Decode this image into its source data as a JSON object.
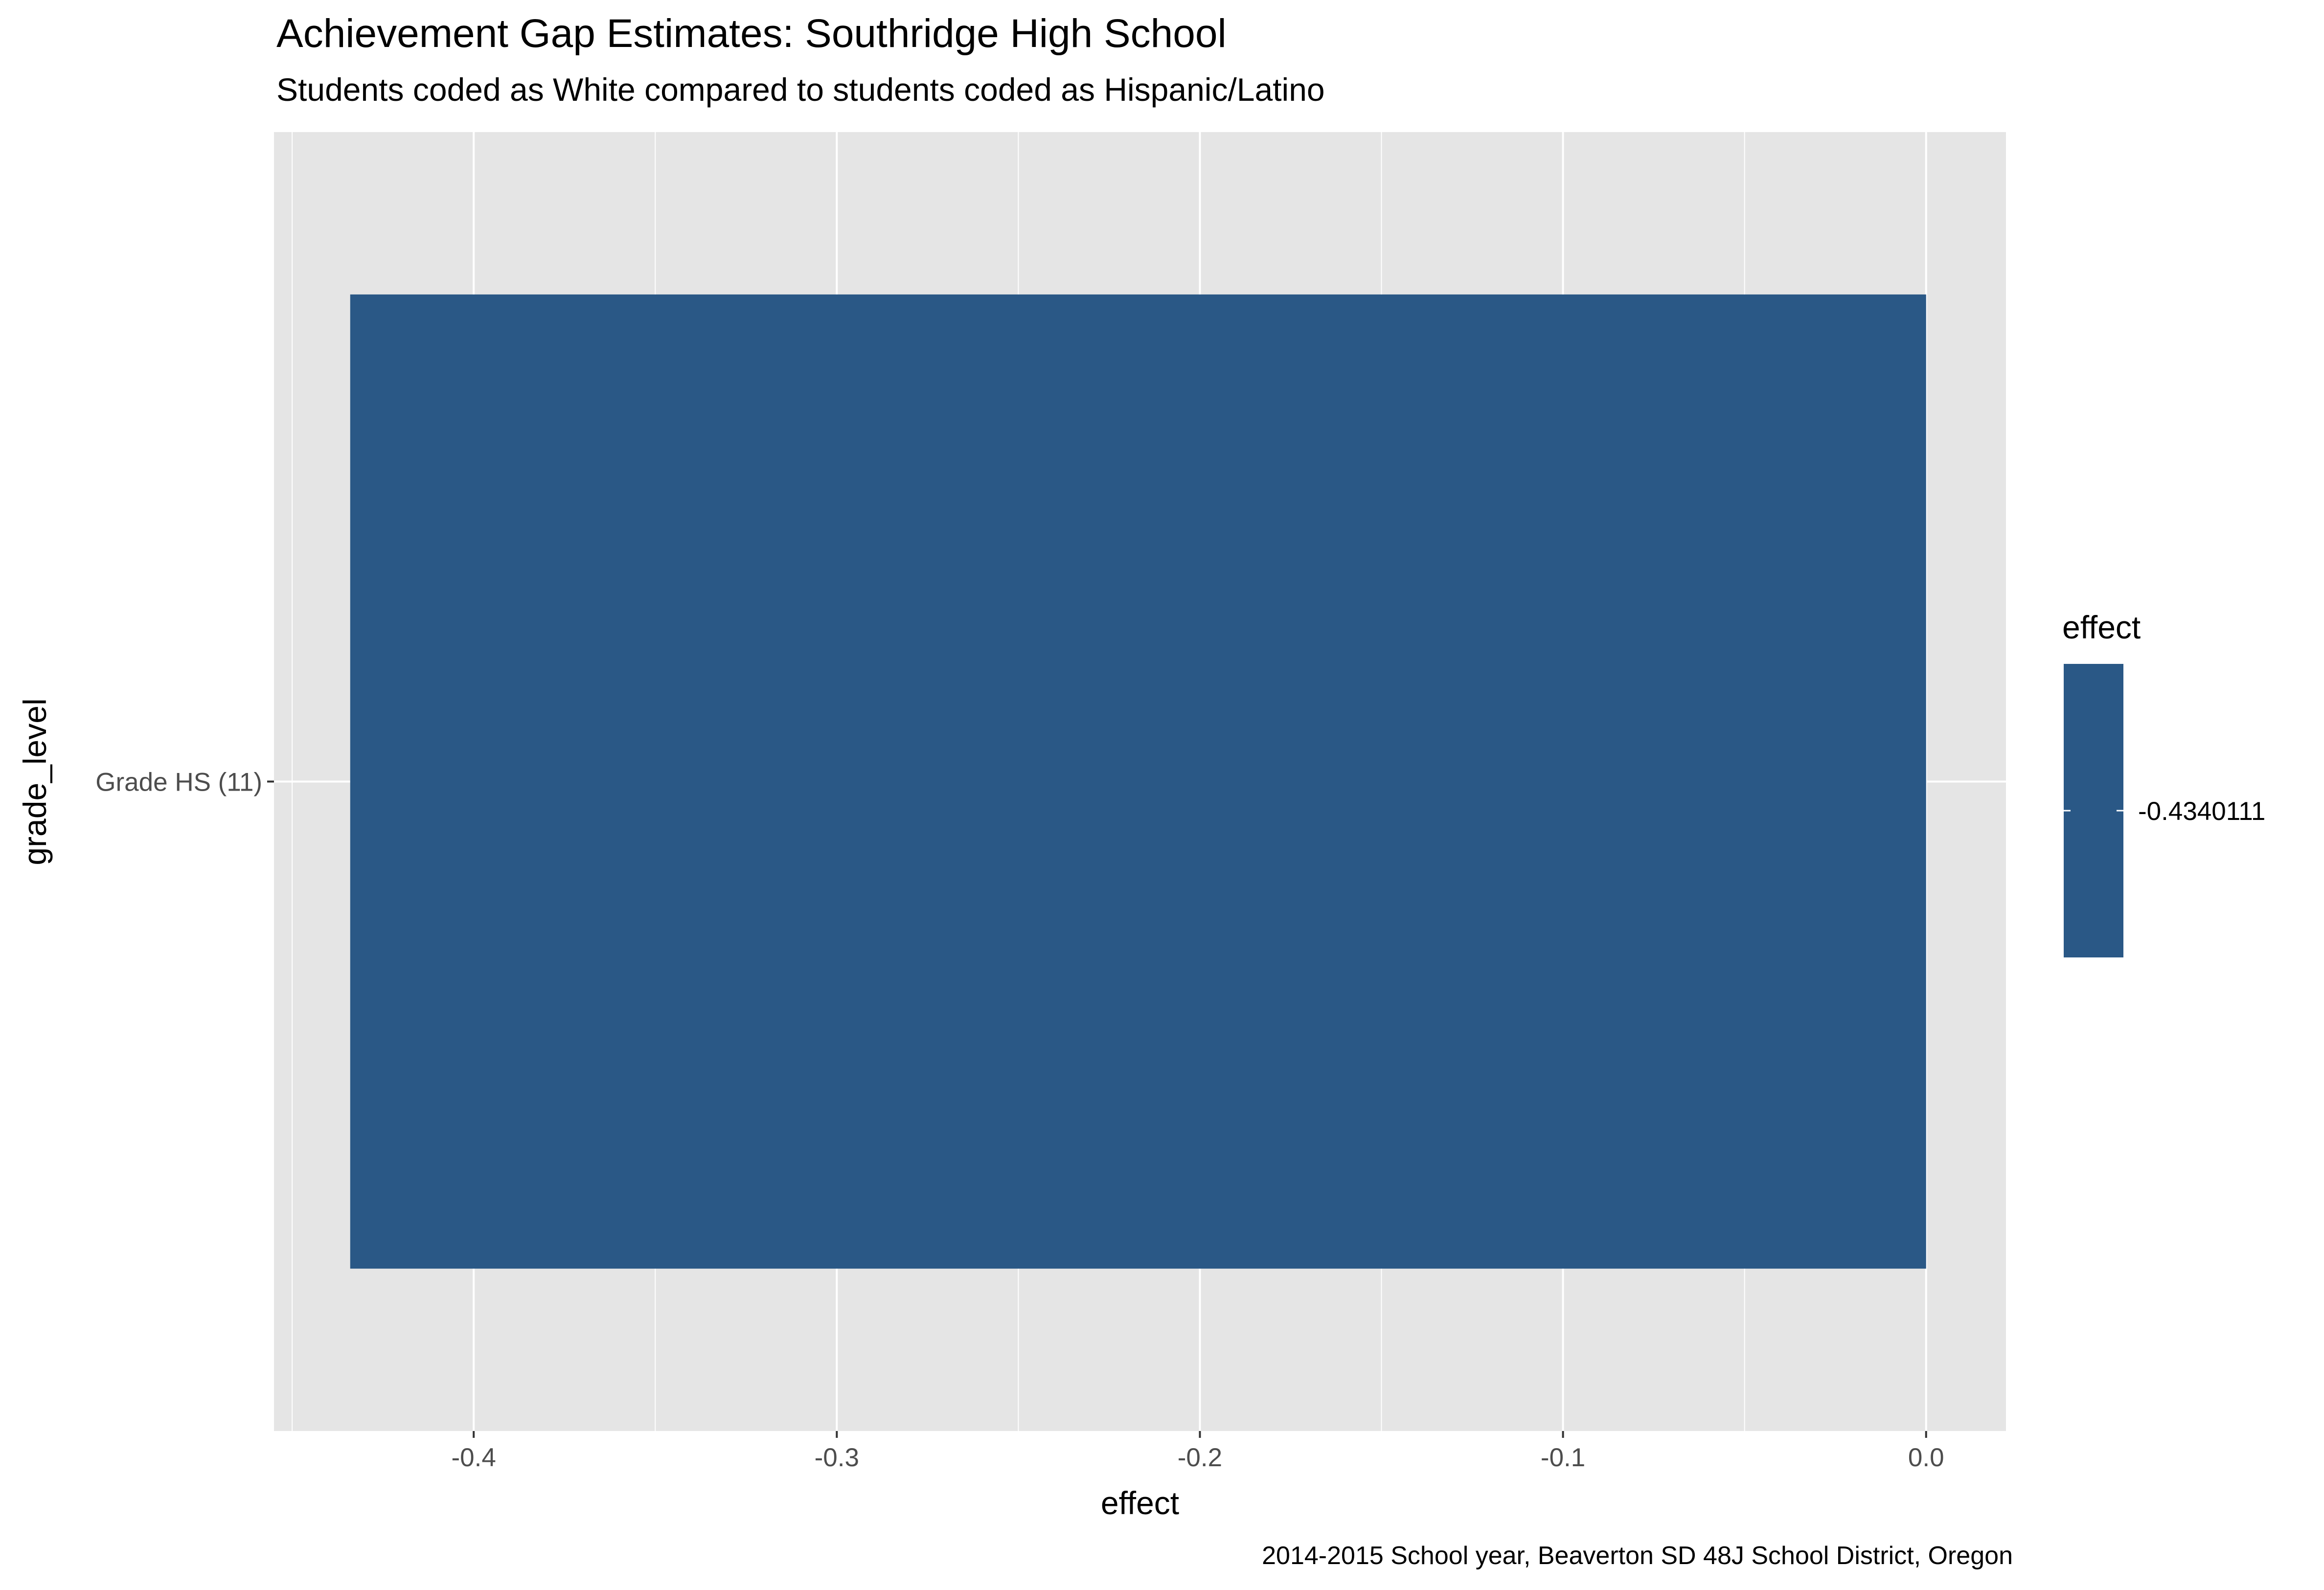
{
  "chart_data": {
    "type": "bar",
    "orientation": "horizontal",
    "title": "Achievement Gap Estimates: Southridge High School",
    "subtitle": "Students coded as White compared to students coded as Hispanic/Latino",
    "caption": "2014-2015 School year, Beaverton SD 48J School District, Oregon",
    "xlabel": "effect",
    "ylabel": "grade_level",
    "categories": [
      "Grade HS (11)"
    ],
    "values": [
      -0.4340111
    ],
    "xlim": [
      -0.455,
      0.022
    ],
    "xticks": [
      -0.4,
      -0.3,
      -0.2,
      -0.1,
      0.0
    ],
    "xtick_labels": [
      "-0.4",
      "-0.3",
      "-0.2",
      "-0.1",
      "0.0"
    ],
    "grid": true,
    "legend": {
      "title": "effect",
      "labels": [
        "-0.4340111"
      ],
      "placement": "right"
    },
    "colors": {
      "bar": "#2a5886",
      "panel": "#e5e5e5",
      "grid": "#ffffff"
    }
  }
}
